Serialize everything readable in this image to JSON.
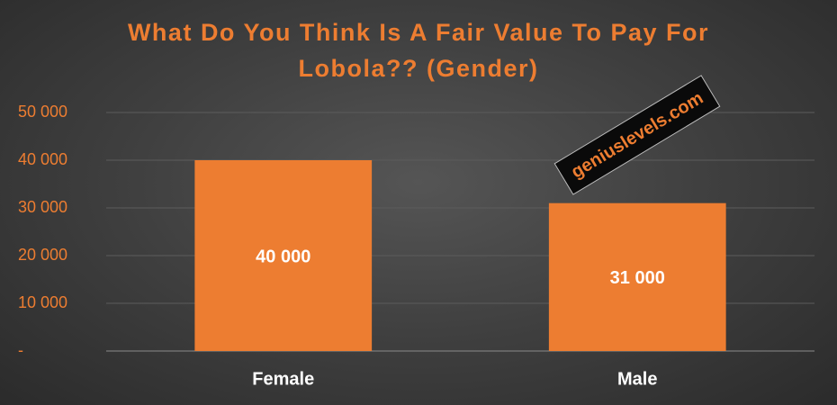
{
  "chart_data": {
    "type": "bar",
    "title": "What Do You Think Is A Fair Value To Pay For Lobola?? (Gender)",
    "categories": [
      "Female",
      "Male"
    ],
    "values": [
      40000,
      31000
    ],
    "value_labels": [
      "40 000",
      "31 000"
    ],
    "color": "#ed7d31",
    "ylim": [
      0,
      50000
    ],
    "yticks": [
      {
        "value": 0,
        "label": "-"
      },
      {
        "value": 10000,
        "label": "10 000"
      },
      {
        "value": 20000,
        "label": "20 000"
      },
      {
        "value": 30000,
        "label": "30 000"
      },
      {
        "value": 40000,
        "label": "40 000"
      },
      {
        "value": 50000,
        "label": "50 000"
      }
    ],
    "grid": true,
    "watermark": "geniuslevels.com"
  }
}
